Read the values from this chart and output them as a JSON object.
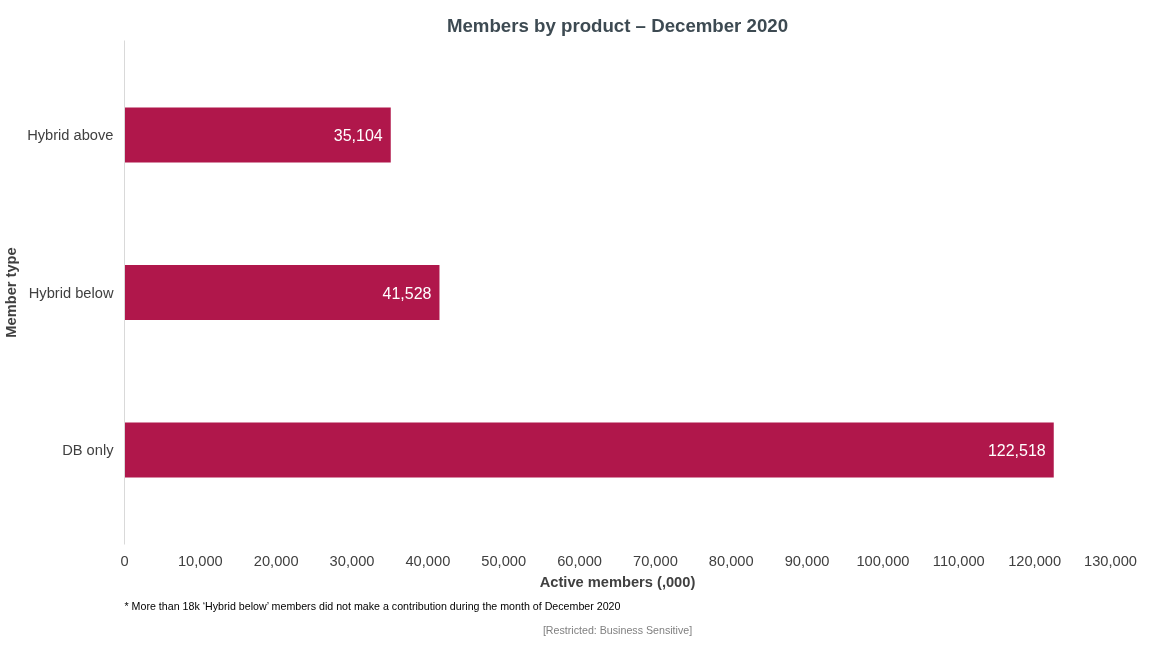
{
  "chart_data": {
    "type": "bar",
    "orientation": "horizontal",
    "title": "Members by product – December 2020",
    "xlabel": "Active members (,000)",
    "ylabel": "Member type",
    "categories": [
      "Hybrid above",
      "Hybrid below",
      "DB only"
    ],
    "values": [
      35104,
      41528,
      122518
    ],
    "color": "#b0174b",
    "value_labels": [
      "35,104",
      "41,528",
      "122,518"
    ],
    "xlim": [
      0,
      130000
    ],
    "xticks": [
      {
        "value": 0,
        "label": "0"
      },
      {
        "value": 10000,
        "label": "10,000"
      },
      {
        "value": 20000,
        "label": "20,000"
      },
      {
        "value": 30000,
        "label": "30,000"
      },
      {
        "value": 40000,
        "label": "40,000"
      },
      {
        "value": 50000,
        "label": "50,000"
      },
      {
        "value": 60000,
        "label": "60,000"
      },
      {
        "value": 70000,
        "label": "70,000"
      },
      {
        "value": 80000,
        "label": "80,000"
      },
      {
        "value": 90000,
        "label": "90,000"
      },
      {
        "value": 100000,
        "label": "100,000"
      },
      {
        "value": 110000,
        "label": "110,000"
      },
      {
        "value": 120000,
        "label": "120,000"
      },
      {
        "value": 130000,
        "label": "130,000"
      }
    ],
    "grid": false,
    "annotations": [
      "* More than 18k ‘Hybrid below’ members did not make a contribution during the month of December 2020",
      "[Restricted: Business Sensitive]"
    ]
  }
}
